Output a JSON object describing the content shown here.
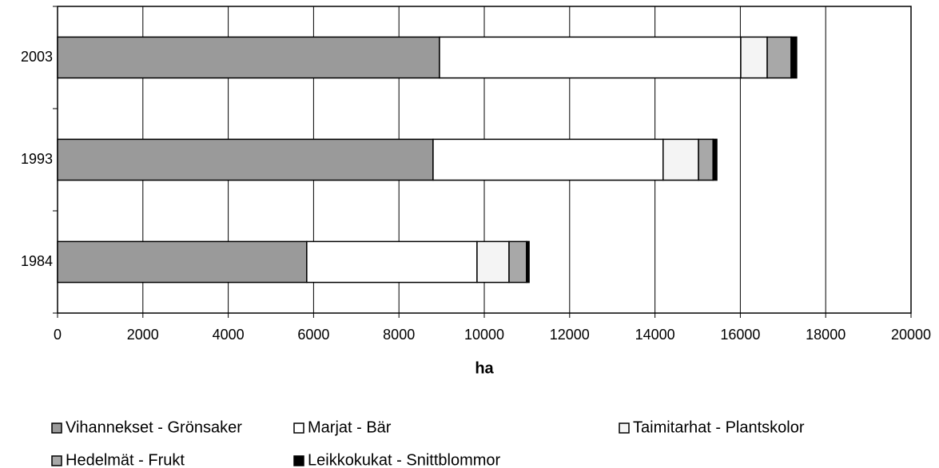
{
  "chart_data": {
    "type": "stacked_bar_horizontal",
    "categories": [
      "2003",
      "1993",
      "1984"
    ],
    "series": [
      {
        "name": "Vihannekset - Grönsaker",
        "color": "#9a9a9a",
        "values": [
          8950,
          8800,
          5840
        ]
      },
      {
        "name": "Marjat - Bär",
        "color": "#ffffff",
        "values": [
          7060,
          5390,
          3990
        ]
      },
      {
        "name": "Taimitarhat - Plantskolor",
        "color": "#f4f4f4",
        "values": [
          620,
          830,
          750
        ]
      },
      {
        "name": "Hedelmät - Frukt",
        "color": "#a8a8a8",
        "values": [
          560,
          340,
          410
        ]
      },
      {
        "name": "Leikkokukat - Snittblommor",
        "color": "#000000",
        "values": [
          130,
          90,
          60
        ]
      }
    ],
    "x_label": "ha",
    "xlim": [
      0,
      20000
    ],
    "xticks": [
      0,
      2000,
      4000,
      6000,
      8000,
      10000,
      12000,
      14000,
      16000,
      18000,
      20000
    ],
    "grid": true
  }
}
